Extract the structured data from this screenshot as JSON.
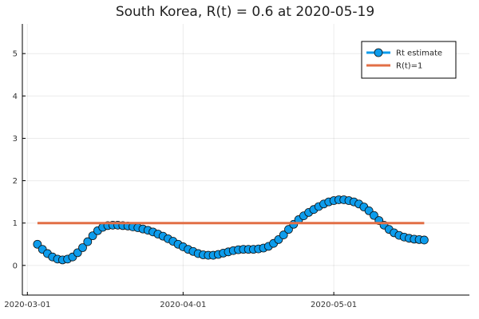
{
  "chart_data": {
    "type": "line",
    "title": "South Korea, R(t) = 0.6 at 2020-05-19",
    "xlabel": "",
    "ylabel": "",
    "x_axis": {
      "type": "date",
      "ticks": [
        "2020-03-01",
        "2020-04-01",
        "2020-05-01"
      ],
      "range": [
        "2020-02-29",
        "2020-05-28"
      ]
    },
    "y_axis": {
      "ticks": [
        0,
        1,
        2,
        3,
        4,
        5
      ],
      "range": [
        -0.7,
        5.7
      ]
    },
    "grid": true,
    "legend": {
      "position": "top-right"
    },
    "series": [
      {
        "name": "Rt estimate",
        "color": "#0C9CEC",
        "marker": "circle",
        "x": [
          "2020-03-03",
          "2020-03-04",
          "2020-03-05",
          "2020-03-06",
          "2020-03-07",
          "2020-03-08",
          "2020-03-09",
          "2020-03-10",
          "2020-03-11",
          "2020-03-12",
          "2020-03-13",
          "2020-03-14",
          "2020-03-15",
          "2020-03-16",
          "2020-03-17",
          "2020-03-18",
          "2020-03-19",
          "2020-03-20",
          "2020-03-21",
          "2020-03-22",
          "2020-03-23",
          "2020-03-24",
          "2020-03-25",
          "2020-03-26",
          "2020-03-27",
          "2020-03-28",
          "2020-03-29",
          "2020-03-30",
          "2020-03-31",
          "2020-04-01",
          "2020-04-02",
          "2020-04-03",
          "2020-04-04",
          "2020-04-05",
          "2020-04-06",
          "2020-04-07",
          "2020-04-08",
          "2020-04-09",
          "2020-04-10",
          "2020-04-11",
          "2020-04-12",
          "2020-04-13",
          "2020-04-14",
          "2020-04-15",
          "2020-04-16",
          "2020-04-17",
          "2020-04-18",
          "2020-04-19",
          "2020-04-20",
          "2020-04-21",
          "2020-04-22",
          "2020-04-23",
          "2020-04-24",
          "2020-04-25",
          "2020-04-26",
          "2020-04-27",
          "2020-04-28",
          "2020-04-29",
          "2020-04-30",
          "2020-05-01",
          "2020-05-02",
          "2020-05-03",
          "2020-05-04",
          "2020-05-05",
          "2020-05-06",
          "2020-05-07",
          "2020-05-08",
          "2020-05-09",
          "2020-05-10",
          "2020-05-11",
          "2020-05-12",
          "2020-05-13",
          "2020-05-14",
          "2020-05-15",
          "2020-05-16",
          "2020-05-17",
          "2020-05-18",
          "2020-05-19"
        ],
        "values": [
          0.5,
          0.38,
          0.28,
          0.2,
          0.15,
          0.13,
          0.15,
          0.2,
          0.3,
          0.42,
          0.56,
          0.7,
          0.82,
          0.9,
          0.94,
          0.95,
          0.95,
          0.94,
          0.93,
          0.91,
          0.89,
          0.86,
          0.83,
          0.79,
          0.74,
          0.69,
          0.63,
          0.57,
          0.5,
          0.44,
          0.38,
          0.33,
          0.28,
          0.25,
          0.24,
          0.24,
          0.26,
          0.29,
          0.32,
          0.35,
          0.37,
          0.38,
          0.38,
          0.38,
          0.39,
          0.41,
          0.45,
          0.52,
          0.61,
          0.72,
          0.85,
          0.97,
          1.08,
          1.17,
          1.25,
          1.32,
          1.39,
          1.45,
          1.5,
          1.53,
          1.55,
          1.55,
          1.53,
          1.5,
          1.45,
          1.38,
          1.29,
          1.18,
          1.06,
          0.95,
          0.85,
          0.77,
          0.71,
          0.67,
          0.64,
          0.62,
          0.61,
          0.6
        ]
      },
      {
        "name": "R(t)=1",
        "color": "#E26F46",
        "marker": "none",
        "x": [
          "2020-03-03",
          "2020-05-19"
        ],
        "values": [
          1,
          1
        ]
      }
    ]
  }
}
